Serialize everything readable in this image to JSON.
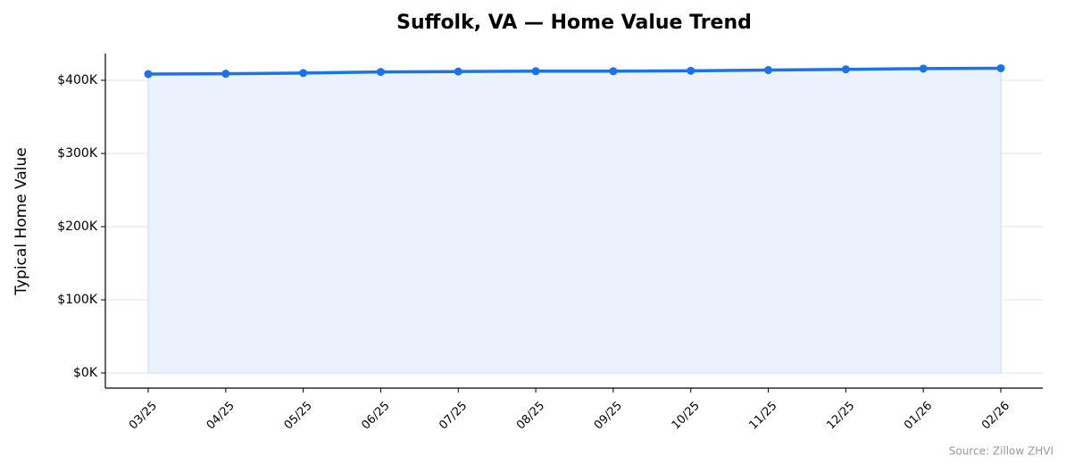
{
  "chart_data": {
    "type": "line",
    "title": "Suffolk, VA — Home Value Trend",
    "y_label": "Typical Home Value",
    "source": "Source: Zillow ZHVI",
    "categories": [
      "03/25",
      "04/25",
      "05/25",
      "06/25",
      "07/25",
      "08/25",
      "09/25",
      "10/25",
      "11/25",
      "12/25",
      "01/26",
      "02/26"
    ],
    "values": [
      408500,
      409000,
      410000,
      411500,
      412000,
      412500,
      412500,
      413000,
      414000,
      415000,
      416000,
      416500
    ],
    "color": "#1a73e8",
    "area_color": "#ebf2fc",
    "ylim": [
      -20700,
      436600
    ],
    "yticks": [
      {
        "value": 0,
        "label": "$0K"
      },
      {
        "value": 100000,
        "label": "$100K"
      },
      {
        "value": 200000,
        "label": "$200K"
      },
      {
        "value": 300000,
        "label": "$300K"
      },
      {
        "value": 400000,
        "label": "$400K"
      }
    ],
    "grid": true
  }
}
